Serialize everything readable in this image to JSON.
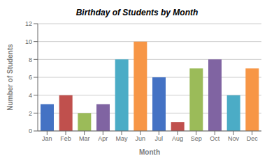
{
  "chart_data": {
    "type": "bar",
    "title": "Birthday of Students by Month",
    "xlabel": "Month",
    "ylabel": "Number of Students",
    "categories": [
      "Jan",
      "Feb",
      "Mar",
      "Apr",
      "May",
      "Jun",
      "Jul",
      "Aug",
      "Sep",
      "Oct",
      "Nov",
      "Dec"
    ],
    "values": [
      3,
      4,
      2,
      3,
      8,
      10,
      6,
      1,
      7,
      8,
      4,
      7
    ],
    "colors": [
      "#4472C4",
      "#C0504D",
      "#9BBB59",
      "#8064A2",
      "#4BACC6",
      "#F79646",
      "#4472C4",
      "#C0504D",
      "#9BBB59",
      "#8064A2",
      "#4BACC6",
      "#F79646"
    ],
    "ylim": [
      0,
      12
    ],
    "yticks": [
      0,
      2,
      4,
      6,
      8,
      10,
      12
    ],
    "grid": true
  }
}
